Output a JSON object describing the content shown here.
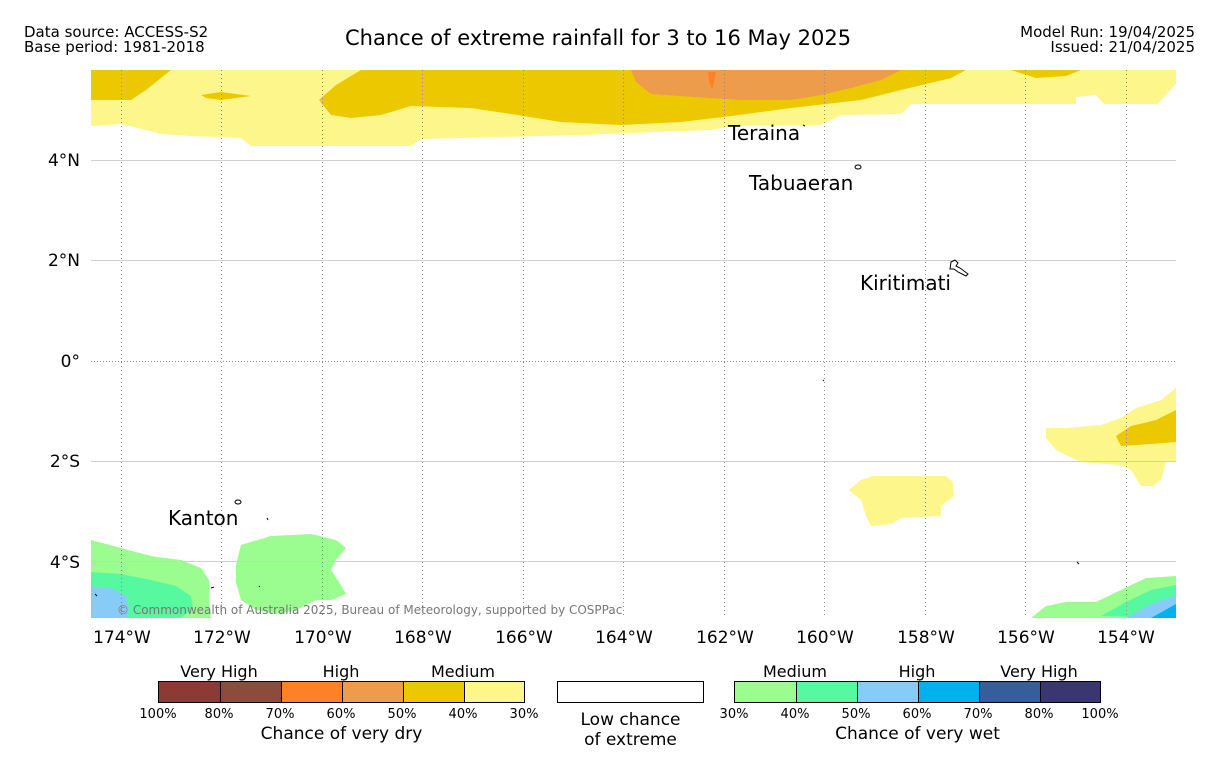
{
  "header": {
    "data_source": "Data source: ACCESS-S2",
    "base_period": "Base period: 1981-2018",
    "title": "Chance of extreme rainfall for 3 to 16 May 2025",
    "model_run": "Model Run: 19/04/2025",
    "issued": "Issued: 21/04/2025"
  },
  "map": {
    "lat_labels": [
      "4°N",
      "2°N",
      "0°",
      "2°S",
      "4°S"
    ],
    "lon_labels": [
      "174°W",
      "172°W",
      "170°W",
      "168°W",
      "166°W",
      "164°W",
      "162°W",
      "160°W",
      "158°W",
      "156°W",
      "154°W"
    ],
    "places": [
      "Teraina",
      "Tabuaeran",
      "Kiritimati",
      "Kanton"
    ],
    "copyright": "© Commonwealth of Australia 2025, Bureau of Meteorology, supported by COSPPac"
  },
  "legend": {
    "dry": {
      "labels": [
        "Very High",
        "High",
        "Medium"
      ],
      "ticks": [
        "100%",
        "80%",
        "70%",
        "60%",
        "50%",
        "40%",
        "30%"
      ],
      "colors": [
        "#8b3a34",
        "#8b4c3c",
        "#ff8126",
        "#ec9c4a",
        "#ebc800",
        "#fdf68a"
      ],
      "caption": "Chance of very dry"
    },
    "neutral": {
      "line1": "Low chance",
      "line2": "of extreme"
    },
    "wet": {
      "labels": [
        "Medium",
        "High",
        "Very High"
      ],
      "ticks": [
        "30%",
        "40%",
        "50%",
        "60%",
        "70%",
        "80%",
        "100%"
      ],
      "colors": [
        "#9bfc90",
        "#57f9a0",
        "#87cbf9",
        "#00b1ec",
        "#365e9b",
        "#3a3670"
      ],
      "caption": "Chance of very wet"
    }
  }
}
